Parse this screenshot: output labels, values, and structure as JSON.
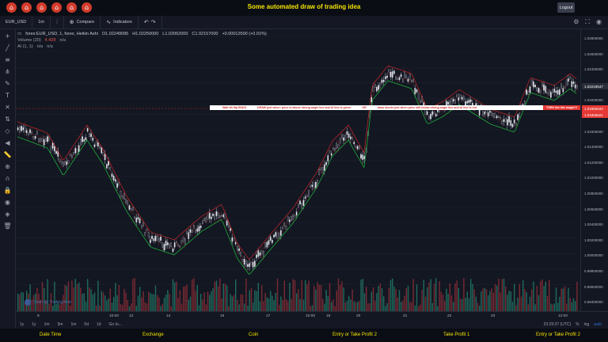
{
  "app": {
    "title": "Some automated draw of trading idea",
    "logout_label": "Logout"
  },
  "toolbar": {
    "symbol": "EUR_USD",
    "interval": "1m",
    "compare_label": "Compare",
    "indicators_label": "Indicators"
  },
  "legend": {
    "main": "forex:EUR_USD, 1, forex, Heikin Ashi",
    "o": "O1.02249095",
    "h": "H1.02250000",
    "l": "L1.02062000",
    "c": "C1.02157000",
    "change": "+0.00012500 (+0.01%)",
    "volume_label": "Volume (20)",
    "volume_value": "4.428",
    "volume_na": "n/a",
    "ai_label": "AI (1, 1)",
    "ai_na1": "n/a",
    "ai_na2": "n/a"
  },
  "banner": {
    "text1": "Wait till flip ENDS",
    "text2": "DRAW just when: price is above strong angle line and AI line is green",
    "text3": "OR",
    "text4": "draw shorts just when price still below strong angle line and AI line is red",
    "tag": "THEN line like magic!!!"
  },
  "price_scale": {
    "ticks": [
      "1.02800000",
      "1.02600000",
      "1.02400000",
      "1.02200000",
      "1.02000000",
      "1.01800000",
      "1.01600000",
      "1.01400000",
      "1.01200000",
      "1.01000000",
      "1.00800000",
      "1.00600000",
      "1.00400000",
      "1.00200000",
      "1.00000000",
      "0.99800000",
      "0.99600000",
      "0.99400000"
    ],
    "last_price": "1.02219547",
    "tag2": "1.01955633",
    "tag3": "1.01905621"
  },
  "time_axis": {
    "labels": [
      "8",
      "10:00",
      "12",
      "14",
      "15",
      "17",
      "10:00",
      "19",
      "20",
      "21",
      "22",
      "23",
      "12:00"
    ]
  },
  "bottombar": {
    "ranges": [
      "1y",
      "1y",
      "1m",
      "3m",
      "1m",
      "5d",
      "1d"
    ],
    "goto": "Go to...",
    "time": "23:29:37 (UTC)",
    "pct": "%",
    "log": "log",
    "auto": "auto"
  },
  "watermark": "Chart by TradingView",
  "footer": {
    "items": [
      "Date Time",
      "Exchange",
      "Coin",
      "Entry or Take Profit 2",
      "Take Profit 1",
      "Entry or Take Profit 2"
    ]
  },
  "colors": {
    "up": "#26a69a",
    "down": "#ef5350",
    "accent_yellow": "#f5e500"
  }
}
